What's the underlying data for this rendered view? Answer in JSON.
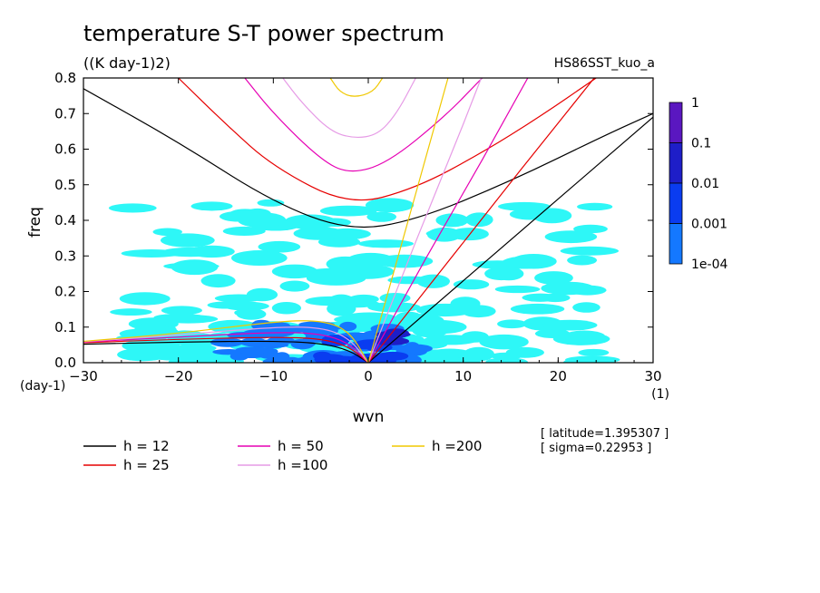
{
  "title": "temperature S-T power spectrum",
  "units": "((K day-1)2)",
  "experiment": "HS86SST_kuo_a",
  "x_unit": "(1)",
  "y_unit": "(day-1)",
  "latitude_text": "[ latitude=1.395307 ]",
  "sigma_text": "[ sigma=0.22953 ]",
  "colorbar": {
    "labels": [
      "1",
      "0.1",
      "0.01",
      "0.001",
      "1e-04"
    ],
    "colors": [
      "#5a17c0",
      "#1e1ec8",
      "#0a3cf0",
      "#1478ff",
      "#2ef7f7"
    ]
  },
  "chart_data": {
    "type": "heatmap",
    "xlabel": "wvn",
    "ylabel": "freq",
    "xlim": [
      -30,
      30
    ],
    "ylim": [
      0,
      0.8
    ],
    "xticks": [
      -30,
      -20,
      -10,
      0,
      10,
      20,
      30
    ],
    "yticks": [
      0.0,
      0.1,
      0.2,
      0.3,
      0.4,
      0.5,
      0.6,
      0.7,
      0.8
    ],
    "ytick_labels": [
      "0.0",
      "0.1",
      "0.2",
      "0.3",
      "0.4",
      "0.5",
      "0.6",
      "0.7",
      "0.8"
    ],
    "xtick_labels": [
      "−30",
      "−20",
      "−10",
      "0",
      "10",
      "20",
      "30"
    ],
    "dispersion_curves": [
      {
        "name": "h = 12",
        "color": "#000000"
      },
      {
        "name": "h = 25",
        "color": "#e60000"
      },
      {
        "name": "h = 50",
        "color": "#e600b4"
      },
      {
        "name": "h =100",
        "color": "#e69be6"
      },
      {
        "name": "h =200",
        "color": "#f0c800"
      }
    ],
    "series": [
      {
        "curve": "h = 12",
        "kind": "gravity",
        "x": [
          -30,
          -20,
          -10,
          -2,
          5,
          15,
          25,
          30
        ],
        "y": [
          0.77,
          0.62,
          0.45,
          0.37,
          0.4,
          0.51,
          0.64,
          0.7
        ]
      },
      {
        "curve": "h = 25",
        "kind": "gravity",
        "x": [
          -20,
          -15,
          -10,
          -2,
          5,
          12,
          18,
          24
        ],
        "y": [
          0.8,
          0.67,
          0.55,
          0.44,
          0.49,
          0.59,
          0.69,
          0.8
        ]
      },
      {
        "curve": "h = 50",
        "kind": "gravity",
        "x": [
          -13,
          -10,
          -5,
          -2,
          2,
          8,
          12
        ],
        "y": [
          0.8,
          0.7,
          0.57,
          0.53,
          0.56,
          0.69,
          0.8
        ]
      },
      {
        "curve": "h =100",
        "kind": "gravity",
        "x": [
          -9,
          -7,
          -4,
          -1.5,
          1,
          3,
          5
        ],
        "y": [
          0.8,
          0.73,
          0.65,
          0.63,
          0.64,
          0.7,
          0.8
        ]
      },
      {
        "curve": "h =200",
        "kind": "gravity",
        "x": [
          -4,
          -3,
          -1.5,
          0.5,
          1.5
        ],
        "y": [
          0.8,
          0.76,
          0.745,
          0.76,
          0.8
        ]
      },
      {
        "curve": "h = 12",
        "kind": "kelvin",
        "x": [
          0,
          10,
          20,
          30
        ],
        "y": [
          0,
          0.23,
          0.46,
          0.69
        ]
      },
      {
        "curve": "h = 25",
        "kind": "kelvin",
        "x": [
          0,
          8,
          16,
          23.8
        ],
        "y": [
          0,
          0.27,
          0.54,
          0.8
        ]
      },
      {
        "curve": "h = 50",
        "kind": "kelvin",
        "x": [
          0,
          6,
          12,
          16.8
        ],
        "y": [
          0,
          0.29,
          0.57,
          0.8
        ]
      },
      {
        "curve": "h =100",
        "kind": "kelvin",
        "x": [
          0,
          5,
          10,
          11.9
        ],
        "y": [
          0,
          0.34,
          0.67,
          0.8
        ]
      },
      {
        "curve": "h =200",
        "kind": "kelvin",
        "x": [
          0,
          4,
          8.4
        ],
        "y": [
          0,
          0.38,
          0.8
        ]
      },
      {
        "curve": "h = 12",
        "kind": "rossby",
        "x": [
          -30,
          -20,
          -10,
          -5,
          -2,
          0
        ],
        "y": [
          0.052,
          0.058,
          0.061,
          0.055,
          0.035,
          0
        ]
      },
      {
        "curve": "h = 25",
        "kind": "rossby",
        "x": [
          -30,
          -20,
          -10,
          -5,
          -2,
          0
        ],
        "y": [
          0.056,
          0.066,
          0.072,
          0.068,
          0.045,
          0
        ]
      },
      {
        "curve": "h = 50",
        "kind": "rossby",
        "x": [
          -30,
          -20,
          -10,
          -5,
          -2,
          0
        ],
        "y": [
          0.058,
          0.072,
          0.086,
          0.082,
          0.055,
          0
        ]
      },
      {
        "curve": "h =100",
        "kind": "rossby",
        "x": [
          -30,
          -20,
          -10,
          -5,
          -2,
          0
        ],
        "y": [
          0.059,
          0.078,
          0.1,
          0.1,
          0.07,
          0
        ]
      },
      {
        "curve": "h =200",
        "kind": "rossby",
        "x": [
          -30,
          -20,
          -10,
          -5,
          -2,
          0
        ],
        "y": [
          0.06,
          0.082,
          0.115,
          0.12,
          0.09,
          0
        ]
      }
    ],
    "spectral_regions": [
      {
        "level": "1e-04",
        "x": [
          -25,
          25
        ],
        "y": [
          0.0,
          0.45
        ]
      },
      {
        "level": "0.001",
        "x": [
          -15,
          5
        ],
        "y": [
          0.0,
          0.11
        ]
      },
      {
        "level": "0.01",
        "x": [
          -5,
          3
        ],
        "y": [
          0.0,
          0.07
        ]
      },
      {
        "level": "0.1",
        "x": [
          1,
          3
        ],
        "y": [
          0.06,
          0.1
        ]
      }
    ]
  }
}
